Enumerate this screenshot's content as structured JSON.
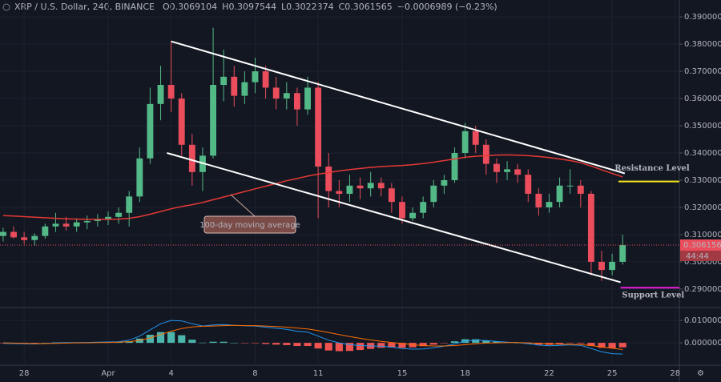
{
  "chart_data": {
    "type": "candlestick",
    "title": "XRP / U.S. Dollar, 240, BINANCE",
    "header": [
      {
        "key": "O",
        "value": "0.3069104"
      },
      {
        "key": "H",
        "value": "0.3097544"
      },
      {
        "key": "L",
        "value": "0.3022374"
      },
      {
        "key": "C",
        "value": "0.3061565"
      }
    ],
    "change": "−0.0006989 (−0.23%)",
    "up_color": "#53b987",
    "down_color": "#eb4d5c",
    "x": [
      -4,
      -3.5,
      -3,
      -2.5,
      -2,
      -1.5,
      -1,
      -0.5,
      0,
      0.5,
      1,
      1.5,
      2,
      2.5,
      3,
      3.5,
      4,
      4.5,
      5,
      5.5,
      6,
      6.5,
      7,
      7.5,
      8,
      8.5,
      9,
      9.5,
      10,
      10.5,
      11,
      11.5,
      12,
      12.5,
      13,
      13.5,
      14,
      14.5,
      15,
      15.5,
      16,
      16.5,
      17,
      17.5,
      18,
      18.5,
      19,
      19.5,
      20,
      20.5,
      21,
      21.5,
      22,
      22.5,
      23,
      23.5,
      24,
      24.5,
      25,
      25.5
    ],
    "candles": [
      [
        0.3095,
        0.3125,
        0.3075,
        0.311
      ],
      [
        0.311,
        0.313,
        0.3085,
        0.309
      ],
      [
        0.309,
        0.311,
        0.3065,
        0.308
      ],
      [
        0.308,
        0.3105,
        0.306,
        0.3095
      ],
      [
        0.3095,
        0.314,
        0.3085,
        0.313
      ],
      [
        0.313,
        0.318,
        0.311,
        0.314
      ],
      [
        0.314,
        0.3165,
        0.3115,
        0.313
      ],
      [
        0.313,
        0.316,
        0.311,
        0.3145
      ],
      [
        0.3145,
        0.317,
        0.312,
        0.315
      ],
      [
        0.315,
        0.3175,
        0.313,
        0.3155
      ],
      [
        0.3155,
        0.3185,
        0.3135,
        0.3165
      ],
      [
        0.3165,
        0.32,
        0.314,
        0.318
      ],
      [
        0.318,
        0.326,
        0.313,
        0.324
      ],
      [
        0.324,
        0.342,
        0.322,
        0.338
      ],
      [
        0.338,
        0.364,
        0.336,
        0.358
      ],
      [
        0.358,
        0.372,
        0.352,
        0.365
      ],
      [
        0.365,
        0.381,
        0.355,
        0.36
      ],
      [
        0.36,
        0.362,
        0.339,
        0.343
      ],
      [
        0.343,
        0.347,
        0.328,
        0.333
      ],
      [
        0.333,
        0.342,
        0.326,
        0.339
      ],
      [
        0.339,
        0.386,
        0.338,
        0.365
      ],
      [
        0.365,
        0.378,
        0.359,
        0.368
      ],
      [
        0.368,
        0.372,
        0.357,
        0.361
      ],
      [
        0.361,
        0.37,
        0.358,
        0.366
      ],
      [
        0.366,
        0.375,
        0.362,
        0.37
      ],
      [
        0.37,
        0.372,
        0.36,
        0.364
      ],
      [
        0.364,
        0.368,
        0.356,
        0.36
      ],
      [
        0.36,
        0.366,
        0.356,
        0.362
      ],
      [
        0.362,
        0.364,
        0.35,
        0.356
      ],
      [
        0.356,
        0.368,
        0.354,
        0.364
      ],
      [
        0.364,
        0.366,
        0.316,
        0.335
      ],
      [
        0.335,
        0.34,
        0.32,
        0.326
      ],
      [
        0.326,
        0.33,
        0.32,
        0.325
      ],
      [
        0.325,
        0.332,
        0.322,
        0.328
      ],
      [
        0.328,
        0.331,
        0.323,
        0.327
      ],
      [
        0.327,
        0.333,
        0.324,
        0.329
      ],
      [
        0.329,
        0.331,
        0.324,
        0.327
      ],
      [
        0.327,
        0.329,
        0.318,
        0.322
      ],
      [
        0.322,
        0.324,
        0.314,
        0.316
      ],
      [
        0.316,
        0.32,
        0.315,
        0.318
      ],
      [
        0.318,
        0.324,
        0.316,
        0.322
      ],
      [
        0.322,
        0.33,
        0.32,
        0.328
      ],
      [
        0.328,
        0.332,
        0.325,
        0.33
      ],
      [
        0.33,
        0.342,
        0.329,
        0.34
      ],
      [
        0.34,
        0.351,
        0.338,
        0.348
      ],
      [
        0.348,
        0.35,
        0.34,
        0.343
      ],
      [
        0.343,
        0.345,
        0.332,
        0.336
      ],
      [
        0.336,
        0.338,
        0.329,
        0.333
      ],
      [
        0.333,
        0.337,
        0.33,
        0.334
      ],
      [
        0.334,
        0.336,
        0.329,
        0.332
      ],
      [
        0.332,
        0.334,
        0.322,
        0.325
      ],
      [
        0.325,
        0.327,
        0.317,
        0.32
      ],
      [
        0.32,
        0.325,
        0.318,
        0.322
      ],
      [
        0.322,
        0.331,
        0.32,
        0.328
      ],
      [
        0.328,
        0.334,
        0.325,
        0.328
      ],
      [
        0.328,
        0.33,
        0.32,
        0.325
      ],
      [
        0.325,
        0.326,
        0.295,
        0.3
      ],
      [
        0.3,
        0.304,
        0.293,
        0.297
      ],
      [
        0.297,
        0.303,
        0.295,
        0.3
      ],
      [
        0.3,
        0.31,
        0.299,
        0.3061565
      ]
    ],
    "ma": {
      "name": "100-day moving average",
      "color": "#e53935",
      "values": [
        0.317,
        0.3168,
        0.3166,
        0.3164,
        0.3162,
        0.316,
        0.3158,
        0.3157,
        0.3156,
        0.3156,
        0.3156,
        0.3157,
        0.316,
        0.3166,
        0.3175,
        0.3185,
        0.3195,
        0.3203,
        0.321,
        0.3218,
        0.3228,
        0.3238,
        0.3248,
        0.3258,
        0.3268,
        0.3278,
        0.3288,
        0.3298,
        0.3306,
        0.3315,
        0.3322,
        0.3328,
        0.3334,
        0.3339,
        0.3343,
        0.3347,
        0.335,
        0.3352,
        0.3354,
        0.3357,
        0.3361,
        0.3366,
        0.3372,
        0.3378,
        0.3384,
        0.3388,
        0.339,
        0.3392,
        0.3393,
        0.3392,
        0.339,
        0.3387,
        0.3383,
        0.3378,
        0.3372,
        0.3364,
        0.3352,
        0.3338,
        0.3325,
        0.3312
      ]
    },
    "trend_lines": [
      [
        [
          4,
          0.381
        ],
        [
          25.6,
          0.3325
        ]
      ],
      [
        [
          3.8,
          0.34
        ],
        [
          25.4,
          0.2925
        ]
      ]
    ],
    "resistance": {
      "label": "Resistance Level",
      "value": 0.3295,
      "x": [
        25.3,
        28.2
      ],
      "color": "#f5e51b"
    },
    "support": {
      "label": "Support Level",
      "value": 0.2905,
      "x": [
        25.4,
        28.2
      ],
      "color": "#e91ee0"
    },
    "last_price": {
      "value": 0.3061565,
      "label": "0.3061565"
    },
    "countdown": "44:44",
    "xlim": [
      -4.15,
      28.2
    ],
    "xticks": [
      {
        "value": -3,
        "label": "28"
      },
      {
        "value": 1,
        "label": "Apr"
      },
      4,
      8,
      11,
      15,
      18,
      22,
      25,
      28
    ],
    "ylim": [
      0.2835,
      0.3962
    ],
    "yticks": [
      {
        "value": 0.29,
        "label": "0.2900000"
      },
      {
        "value": 0.3,
        "label": "0.3000000"
      },
      {
        "value": 0.31,
        "label": "0.3100000"
      },
      {
        "value": 0.32,
        "label": "0.3200000"
      },
      {
        "value": 0.33,
        "label": "0.3300000"
      },
      {
        "value": 0.34,
        "label": "0.3400000"
      },
      {
        "value": 0.35,
        "label": "0.3500000"
      },
      {
        "value": 0.36,
        "label": "0.3600000"
      },
      {
        "value": 0.37,
        "label": "0.3700000"
      },
      {
        "value": 0.38,
        "label": "0.3800000"
      },
      {
        "value": 0.39,
        "label": "0.3900000"
      }
    ],
    "grid": true,
    "macd": {
      "ylim": [
        -0.0096,
        0.0154
      ],
      "yticks": [
        {
          "value": 0,
          "label": "0.0000000"
        },
        {
          "value": 0.01,
          "label": "0.0100000"
        }
      ],
      "macd_line": {
        "color": "#2196f3",
        "values": [
          -0.0002,
          -0.0003,
          -0.0004,
          -0.0005,
          -0.0003,
          0,
          0.0001,
          0.0001,
          0.0002,
          0.0003,
          0.0004,
          0.0005,
          0.0012,
          0.003,
          0.0058,
          0.0085,
          0.01,
          0.0098,
          0.0085,
          0.0075,
          0.008,
          0.0082,
          0.0078,
          0.0076,
          0.0075,
          0.007,
          0.0065,
          0.006,
          0.0052,
          0.0048,
          0.003,
          0.0012,
          0,
          -0.0008,
          -0.0012,
          -0.0014,
          -0.0015,
          -0.0019,
          -0.0025,
          -0.0028,
          -0.0027,
          -0.0022,
          -0.0015,
          -0.0005,
          0.0008,
          0.0012,
          0.001,
          0.0006,
          0.0003,
          0.0001,
          -0.0004,
          -0.001,
          -0.0013,
          -0.0011,
          -0.0009,
          -0.0011,
          -0.0025,
          -0.004,
          -0.0048,
          -0.005
        ]
      },
      "signal_line": {
        "color": "#ff6d00",
        "values": [
          0,
          -0.0001,
          -0.0002,
          -0.0003,
          -0.0003,
          -0.0002,
          -0.0001,
          0,
          0,
          0.0001,
          0.0002,
          0.0003,
          0.0005,
          0.0011,
          0.0022,
          0.0037,
          0.0052,
          0.0064,
          0.0071,
          0.0074,
          0.0075,
          0.0077,
          0.0078,
          0.0077,
          0.0077,
          0.0075,
          0.0073,
          0.007,
          0.0066,
          0.0062,
          0.0055,
          0.0046,
          0.0037,
          0.0028,
          0.002,
          0.0013,
          0.0007,
          0.0002,
          -0.0003,
          -0.0008,
          -0.0012,
          -0.0014,
          -0.0014,
          -0.0012,
          -0.0008,
          -0.0004,
          -0.0001,
          0,
          0.0001,
          0.0001,
          0,
          -0.0002,
          -0.0004,
          -0.0006,
          -0.0007,
          -0.0008,
          -0.0012,
          -0.0018,
          -0.0024,
          -0.003
        ]
      },
      "histogram": {
        "up_color": "#4db6ac",
        "down_color": "#ef5350",
        "values": [
          -0.0002,
          -0.0002,
          -0.0002,
          -0.0002,
          0,
          0.0002,
          0.0002,
          0.0001,
          0.0002,
          0.0002,
          0.0002,
          0.0002,
          0.0007,
          0.0019,
          0.0036,
          0.0048,
          0.0048,
          0.0034,
          0.0014,
          0.0001,
          0.0005,
          0.0005,
          0,
          -0.0001,
          -0.0002,
          -0.0005,
          -0.0008,
          -0.001,
          -0.0014,
          -0.0014,
          -0.0025,
          -0.0034,
          -0.0037,
          -0.0036,
          -0.0032,
          -0.0027,
          -0.0022,
          -0.0021,
          -0.0022,
          -0.002,
          -0.0015,
          -0.0008,
          -0.0001,
          0.0007,
          0.0016,
          0.0016,
          0.0011,
          0.0006,
          0.0002,
          0,
          -0.0004,
          -0.0008,
          -0.0009,
          -0.0005,
          -0.0002,
          -0.0003,
          -0.0013,
          -0.0022,
          -0.0024,
          -0.002
        ]
      }
    }
  }
}
